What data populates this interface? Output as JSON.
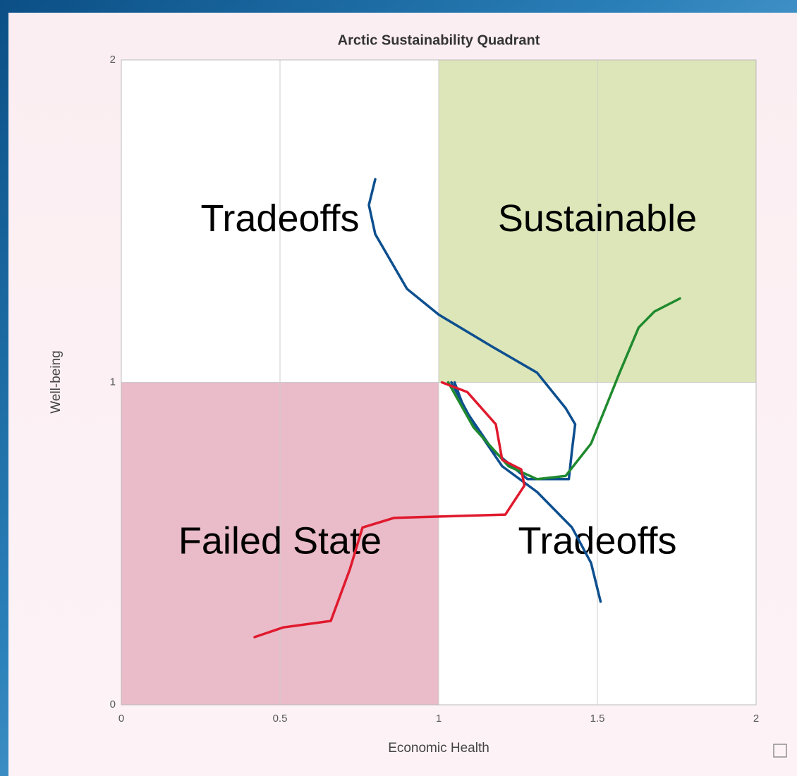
{
  "chart_data": {
    "type": "line",
    "title": "Arctic Sustainability Quadrant",
    "x_label": "Economic Health",
    "y_label": "Well-being",
    "xlim": [
      0,
      2
    ],
    "ylim": [
      0,
      2
    ],
    "xticks": [
      0,
      0.5,
      1,
      1.5,
      2
    ],
    "yticks": [
      0,
      1,
      2
    ],
    "grid": true,
    "regions": [
      {
        "label": "Tradeoffs",
        "xlim": [
          0,
          1
        ],
        "ylim": [
          1,
          2
        ]
      },
      {
        "label": "Sustainable",
        "xlim": [
          1,
          2
        ],
        "ylim": [
          1,
          2
        ],
        "color": "#d9e3b0"
      },
      {
        "label": "Failed State",
        "xlim": [
          0,
          1
        ],
        "ylim": [
          0,
          1
        ],
        "color": "#e8b4c3"
      },
      {
        "label": "Tradeoffs",
        "xlim": [
          1,
          2
        ],
        "ylim": [
          0,
          1
        ]
      }
    ],
    "series": [
      {
        "color": "#0d4f8f",
        "x": [
          0.8,
          0.78,
          0.8,
          0.9,
          1.0,
          1.17,
          1.31,
          1.4,
          1.43,
          1.42,
          1.41,
          1.28,
          1.17,
          1.08,
          1.05
        ],
        "values": [
          1.63,
          1.55,
          1.46,
          1.29,
          1.21,
          1.11,
          1.03,
          0.92,
          0.87,
          0.79,
          0.7,
          0.7,
          0.79,
          0.92,
          1.0
        ]
      },
      {
        "color": "#0d4f8f",
        "x": [
          1.04,
          1.11,
          1.2,
          1.31,
          1.42,
          1.48,
          1.51
        ],
        "values": [
          1.0,
          0.87,
          0.74,
          0.66,
          0.55,
          0.44,
          0.32
        ]
      },
      {
        "color": "#1f8a2e",
        "x": [
          1.03,
          1.11,
          1.22,
          1.31,
          1.4,
          1.48,
          1.57,
          1.63,
          1.68,
          1.76
        ],
        "values": [
          1.0,
          0.86,
          0.74,
          0.7,
          0.71,
          0.81,
          1.03,
          1.17,
          1.22,
          1.26
        ]
      },
      {
        "color": "#e0192d",
        "x": [
          1.01,
          1.09,
          1.18,
          1.2,
          1.26,
          1.27,
          1.21,
          0.86,
          0.76,
          0.72,
          0.66,
          0.51,
          0.42
        ],
        "values": [
          1.0,
          0.97,
          0.87,
          0.76,
          0.73,
          0.68,
          0.59,
          0.58,
          0.55,
          0.42,
          0.26,
          0.24,
          0.21
        ]
      }
    ]
  }
}
